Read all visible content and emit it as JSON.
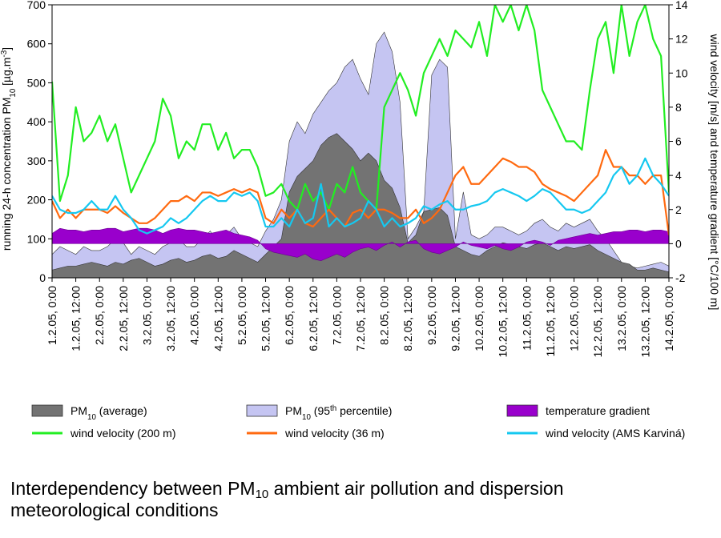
{
  "chart_data": {
    "type": "line",
    "title": "Interdependency between PM10 ambient air pollution and dispersion meteorological conditions",
    "ylabel": "running 24-h concentration PM10 [µg.m-3]",
    "y2label": "wind velocity [m/s]  and temperature gradient  [°C/100 m]",
    "categories": [
      "1.2.05, 0:00",
      null,
      null,
      "1.2.05, 12:00",
      null,
      null,
      "2.2.05, 0:00",
      null,
      null,
      "2.2.05, 12:00",
      null,
      null,
      "3.2.05, 0:00",
      null,
      null,
      "3.2.05, 12:00",
      null,
      null,
      "4.2.05, 0:00",
      null,
      null,
      "4.2.05, 12:00",
      null,
      null,
      "5.2.05, 0:00",
      null,
      null,
      "5.2.05, 12:00",
      null,
      null,
      "6.2.05, 0:00",
      null,
      null,
      "6.2.05, 12:00",
      null,
      null,
      "7.2.05, 0:00",
      null,
      null,
      "7.2.05, 12:00",
      null,
      null,
      "8.2.05, 0:00",
      null,
      null,
      "8.2.05, 12:00",
      null,
      null,
      "9.2.05, 0:00",
      null,
      null,
      "9.2.05, 12:00",
      null,
      null,
      "10.2.05, 0:00",
      null,
      null,
      "10.2.05, 12:00",
      null,
      null,
      "11.2.05, 0:00",
      null,
      null,
      "11.2.05, 12:00",
      null,
      null,
      "12.2.05, 0:00",
      null,
      null,
      "12.2.05, 12:00",
      null,
      null,
      "13.2.05, 0:00",
      null,
      null,
      "13.2.05, 12:00",
      null,
      null,
      "14.2.05, 0:00"
    ],
    "ylim": [
      0,
      700
    ],
    "yticks": [
      0,
      100,
      200,
      300,
      400,
      500,
      600,
      700
    ],
    "y2lim": [
      -2,
      14
    ],
    "y2ticks": [
      -2,
      0,
      2,
      4,
      6,
      8,
      10,
      12,
      14
    ],
    "grid": false,
    "series": [
      {
        "name": "PM10 (95th percentile)",
        "type": "area",
        "color": "#c5c5f2",
        "values": [
          60,
          80,
          70,
          60,
          80,
          70,
          70,
          80,
          100,
          90,
          60,
          80,
          70,
          60,
          80,
          90,
          100,
          80,
          80,
          100,
          120,
          90,
          110,
          130,
          100,
          90,
          80,
          120,
          150,
          200,
          350,
          400,
          370,
          420,
          450,
          480,
          500,
          540,
          560,
          510,
          470,
          600,
          630,
          580,
          450,
          100,
          130,
          170,
          520,
          560,
          540,
          100,
          220,
          110,
          100,
          110,
          130,
          130,
          120,
          110,
          120,
          140,
          150,
          130,
          120,
          140,
          130,
          140,
          150,
          120,
          100,
          70,
          40,
          30,
          25,
          30,
          35,
          40,
          30
        ]
      },
      {
        "name": "PM10 (average)",
        "type": "area",
        "color": "#737373",
        "values": [
          20,
          25,
          30,
          30,
          35,
          40,
          35,
          30,
          40,
          35,
          45,
          50,
          40,
          30,
          35,
          45,
          50,
          40,
          45,
          55,
          60,
          50,
          55,
          70,
          60,
          50,
          40,
          60,
          80,
          100,
          220,
          260,
          280,
          300,
          340,
          360,
          370,
          350,
          330,
          300,
          320,
          300,
          250,
          230,
          180,
          90,
          110,
          170,
          175,
          180,
          160,
          80,
          70,
          60,
          55,
          70,
          80,
          90,
          85,
          80,
          75,
          85,
          90,
          80,
          70,
          80,
          75,
          80,
          85,
          70,
          60,
          50,
          40,
          35,
          20,
          20,
          25,
          20,
          15
        ]
      },
      {
        "name": "temperature gradient",
        "type": "area",
        "axis": "y2",
        "color": "#9900cc",
        "values": [
          0.6,
          0.9,
          0.8,
          0.8,
          0.7,
          0.8,
          0.8,
          0.9,
          0.9,
          0.7,
          0.8,
          0.9,
          0.9,
          0.8,
          0.6,
          0.8,
          0.9,
          0.8,
          0.8,
          0.7,
          0.6,
          0.7,
          0.8,
          0.6,
          0.5,
          0.4,
          0.2,
          -0.3,
          -0.5,
          -0.6,
          -0.7,
          -0.8,
          -0.6,
          -0.9,
          -1.0,
          -0.8,
          -0.6,
          -0.8,
          -0.5,
          -0.3,
          -0.2,
          -0.4,
          -0.1,
          0.1,
          -0.2,
          0.1,
          0.2,
          -0.3,
          -0.5,
          -0.6,
          -0.4,
          -0.2,
          0.1,
          -0.1,
          -0.2,
          -0.3,
          -0.1,
          -0.3,
          -0.4,
          -0.2,
          0.1,
          0.2,
          0.1,
          -0.1,
          0.2,
          0.3,
          0.4,
          0.5,
          0.6,
          0.5,
          0.6,
          0.7,
          0.7,
          0.8,
          0.8,
          0.7,
          0.8,
          0.8,
          0.7
        ]
      },
      {
        "name": "wind velocity (200 m)",
        "type": "line",
        "axis": "y2",
        "color": "#22ee22",
        "values": [
          9.5,
          2.5,
          4,
          8,
          6,
          6.5,
          7.5,
          6,
          7,
          5,
          3,
          4,
          5,
          6,
          8.5,
          7.5,
          5,
          6,
          5.5,
          7,
          7,
          5.5,
          6.5,
          5,
          5.5,
          5.5,
          4.5,
          2.8,
          3,
          3.5,
          2.5,
          2,
          3.5,
          2.5,
          3,
          2,
          3.5,
          3,
          4.5,
          3,
          2.5,
          2,
          8,
          9,
          10,
          9,
          7.5,
          10,
          11,
          12,
          11,
          12.5,
          12,
          11.5,
          13,
          11,
          14,
          13,
          14,
          12.5,
          14,
          12.5,
          9,
          8,
          7,
          6,
          6,
          5.5,
          9,
          12,
          13,
          10,
          14,
          11,
          13,
          14,
          12,
          11,
          3
        ]
      },
      {
        "name": "wind velocity (36 m)",
        "type": "line",
        "axis": "y2",
        "color": "#ff6a10",
        "values": [
          2.5,
          1.5,
          2,
          1.5,
          2,
          2,
          2,
          1.8,
          2.2,
          1.8,
          1.5,
          1.2,
          1.2,
          1.5,
          2,
          2.5,
          2.5,
          2.8,
          2.5,
          3,
          3,
          2.8,
          3,
          3.2,
          3,
          3.2,
          3,
          1.5,
          1.2,
          2,
          1.5,
          2,
          1.2,
          1,
          1.5,
          2,
          1.5,
          1,
          1.8,
          2,
          1.5,
          2,
          2,
          1.8,
          1.5,
          1.5,
          2,
          1.2,
          1.5,
          2,
          3,
          4,
          4.5,
          3.5,
          3.5,
          4,
          4.5,
          5,
          4.8,
          4.5,
          4.5,
          4.2,
          3.5,
          3.2,
          3,
          2.8,
          2.5,
          3,
          3.5,
          4,
          5.5,
          4.5,
          4.5,
          4,
          4,
          3.5,
          4,
          4,
          0.5
        ]
      },
      {
        "name": "wind velocity (AMS Karviná)",
        "type": "line",
        "axis": "y2",
        "color": "#15c8f0",
        "values": [
          2.8,
          2,
          1.8,
          1.8,
          2,
          2.5,
          2,
          2,
          2.8,
          2,
          1.5,
          0.8,
          0.6,
          0.8,
          1,
          1.5,
          1.2,
          1.5,
          2,
          2.5,
          2.8,
          2.5,
          2.5,
          3,
          2.8,
          3,
          2.5,
          1,
          1,
          1.5,
          1,
          2,
          1.2,
          1.5,
          3.5,
          1,
          1.5,
          1,
          1.2,
          1.5,
          2.5,
          2,
          1,
          1.5,
          1,
          1.2,
          1.5,
          2.2,
          2,
          2.3,
          2.5,
          2,
          2,
          2.2,
          2.3,
          2.5,
          3,
          3.2,
          3,
          2.8,
          2.5,
          2.8,
          3.2,
          3,
          2.5,
          2,
          2,
          1.8,
          2,
          2.5,
          3,
          4,
          4.5,
          3.5,
          4,
          5,
          4,
          3.5,
          2.8
        ]
      }
    ]
  }
}
